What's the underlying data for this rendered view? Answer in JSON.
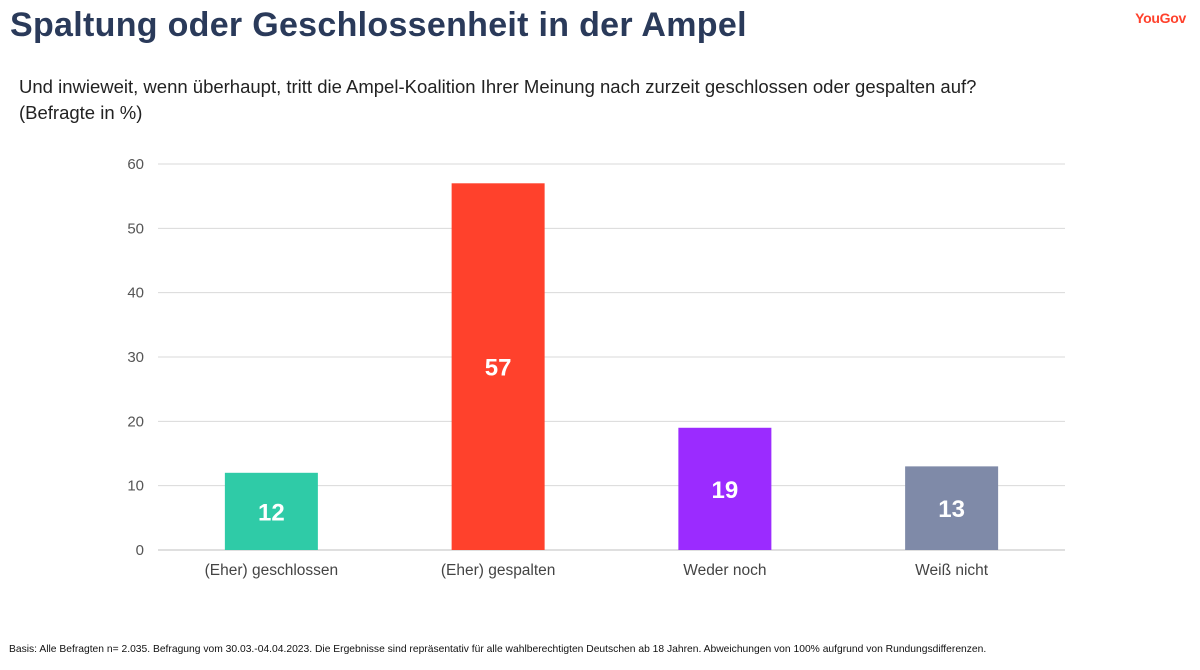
{
  "header": {
    "title": "Spaltung oder Geschlossenheit in der Ampel",
    "logo_text": "YouGov"
  },
  "question": {
    "line1": "Und inwieweit, wenn überhaupt, tritt die Ampel-Koalition Ihrer Meinung nach zurzeit geschlossen oder gespalten auf?",
    "line2": "(Befragte in %)"
  },
  "footnote": "Basis: Alle Befragten n= 2.035. Befragung vom 30.03.-04.04.2023. Die Ergebnisse sind repräsentativ für alle wahlberechtigten Deutschen ab 18 Jahren. Abweichungen von 100% aufgrund von Rundungsdifferenzen.",
  "chart_data": {
    "type": "bar",
    "categories": [
      "(Eher) geschlossen",
      "(Eher) gespalten",
      "Weder noch",
      "Weiß nicht"
    ],
    "values": [
      12,
      57,
      19,
      13
    ],
    "value_labels": [
      "12",
      "57",
      "19",
      "13"
    ],
    "colors": [
      "#2fcba7",
      "#ff412c",
      "#9b2bff",
      "#7f8aa8"
    ],
    "ylim": [
      0,
      60
    ],
    "yticks": [
      "0",
      "10",
      "20",
      "30",
      "40",
      "50",
      "60"
    ],
    "grid": true,
    "legend": "none"
  }
}
